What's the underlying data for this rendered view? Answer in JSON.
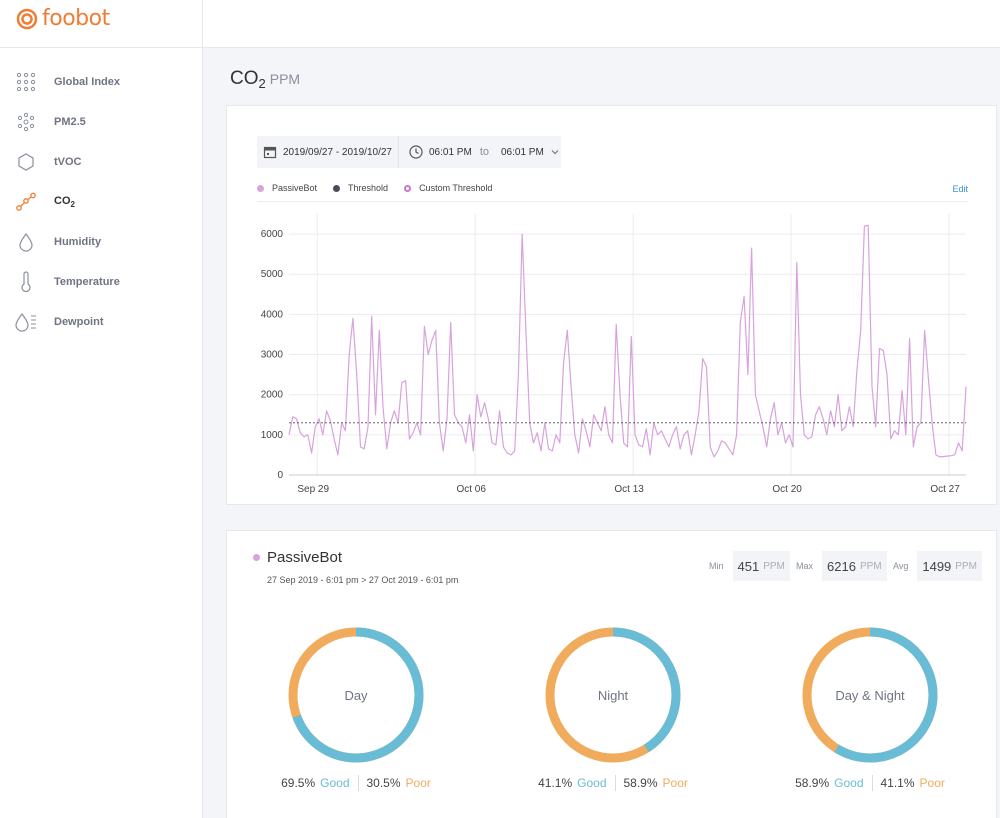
{
  "header": {
    "logo_text": "foobot",
    "brand_color": "#ee7d35"
  },
  "sidebar": {
    "items": [
      {
        "label": "Global Index",
        "icon": "grid-dots-icon"
      },
      {
        "label": "PM2.5",
        "icon": "particles-icon"
      },
      {
        "label": "tVOC",
        "icon": "hexagon-icon"
      },
      {
        "label": "CO",
        "label_sub": "2",
        "icon": "molecule-icon",
        "active": true
      },
      {
        "label": "Humidity",
        "icon": "droplet-icon"
      },
      {
        "label": "Temperature",
        "icon": "thermometer-icon"
      },
      {
        "label": "Dewpoint",
        "icon": "dewpoint-icon"
      }
    ]
  },
  "page": {
    "title_main": "CO",
    "title_sub": "2",
    "title_unit": "PPM"
  },
  "date_picker": {
    "range": "2019/09/27 - 2019/10/27",
    "time_from": "06:01 PM",
    "to_label": "to",
    "time_to": "06:01 PM"
  },
  "legend": {
    "passivebot": "PassiveBot",
    "threshold": "Threshold",
    "custom_threshold": "Custom Threshold",
    "edit": "Edit"
  },
  "colors": {
    "series": "#d8a2dd",
    "threshold": "#4a4c5a",
    "good": "#69bcd6",
    "poor": "#f0ac5c"
  },
  "chart_data": {
    "type": "line",
    "series_name": "PassiveBot",
    "x_start": "2019-09-27",
    "x_end": "2019-10-27",
    "x_ticks": [
      {
        "label": "Sep 29",
        "date": "2019-09-29"
      },
      {
        "label": "Oct 06",
        "date": "2019-10-06"
      },
      {
        "label": "Oct 13",
        "date": "2019-10-13"
      },
      {
        "label": "Oct 20",
        "date": "2019-10-20"
      },
      {
        "label": "Oct 27",
        "date": "2019-10-27"
      }
    ],
    "y_ticks": [
      0,
      1000,
      2000,
      3000,
      4000,
      5000,
      6000
    ],
    "ylim": [
      0,
      6500
    ],
    "threshold": 1300,
    "grid": true,
    "points": [
      [
        "2019-09-27T18:00",
        1000
      ],
      [
        "2019-09-27T22:00",
        1450
      ],
      [
        "2019-09-28T02:00",
        1400
      ],
      [
        "2019-09-28T06:00",
        1050
      ],
      [
        "2019-09-28T10:00",
        950
      ],
      [
        "2019-09-28T14:00",
        1000
      ],
      [
        "2019-09-28T18:00",
        550
      ],
      [
        "2019-09-28T22:00",
        1200
      ],
      [
        "2019-09-29T02:00",
        1400
      ],
      [
        "2019-09-29T06:00",
        1000
      ],
      [
        "2019-09-29T10:00",
        1600
      ],
      [
        "2019-09-29T14:00",
        1350
      ],
      [
        "2019-09-29T18:00",
        900
      ],
      [
        "2019-09-29T22:00",
        500
      ],
      [
        "2019-09-30T02:00",
        1300
      ],
      [
        "2019-09-30T06:00",
        1100
      ],
      [
        "2019-09-30T10:00",
        3000
      ],
      [
        "2019-09-30T14:00",
        3900
      ],
      [
        "2019-09-30T18:00",
        2500
      ],
      [
        "2019-09-30T22:00",
        700
      ],
      [
        "2019-10-01T02:00",
        650
      ],
      [
        "2019-10-01T06:00",
        1200
      ],
      [
        "2019-10-01T10:00",
        3950
      ],
      [
        "2019-10-01T14:00",
        1500
      ],
      [
        "2019-10-01T18:00",
        3600
      ],
      [
        "2019-10-01T22:00",
        1700
      ],
      [
        "2019-10-02T02:00",
        650
      ],
      [
        "2019-10-02T06:00",
        1300
      ],
      [
        "2019-10-02T10:00",
        1600
      ],
      [
        "2019-10-02T14:00",
        1300
      ],
      [
        "2019-10-02T18:00",
        2300
      ],
      [
        "2019-10-02T22:00",
        2350
      ],
      [
        "2019-10-03T02:00",
        900
      ],
      [
        "2019-10-03T06:00",
        1050
      ],
      [
        "2019-10-03T10:00",
        1300
      ],
      [
        "2019-10-03T14:00",
        1000
      ],
      [
        "2019-10-03T18:00",
        3700
      ],
      [
        "2019-10-03T22:00",
        3000
      ],
      [
        "2019-10-04T02:00",
        3350
      ],
      [
        "2019-10-04T06:00",
        3600
      ],
      [
        "2019-10-04T10:00",
        1300
      ],
      [
        "2019-10-04T14:00",
        600
      ],
      [
        "2019-10-04T18:00",
        1400
      ],
      [
        "2019-10-04T22:00",
        3800
      ],
      [
        "2019-10-05T02:00",
        1500
      ],
      [
        "2019-10-05T06:00",
        1300
      ],
      [
        "2019-10-05T10:00",
        1200
      ],
      [
        "2019-10-05T14:00",
        800
      ],
      [
        "2019-10-05T18:00",
        1500
      ],
      [
        "2019-10-05T22:00",
        600
      ],
      [
        "2019-10-06T02:00",
        2000
      ],
      [
        "2019-10-06T06:00",
        1450
      ],
      [
        "2019-10-06T10:00",
        1800
      ],
      [
        "2019-10-06T14:00",
        1400
      ],
      [
        "2019-10-06T18:00",
        800
      ],
      [
        "2019-10-06T22:00",
        750
      ],
      [
        "2019-10-07T02:00",
        1600
      ],
      [
        "2019-10-07T06:00",
        700
      ],
      [
        "2019-10-07T10:00",
        550
      ],
      [
        "2019-10-07T14:00",
        500
      ],
      [
        "2019-10-07T18:00",
        600
      ],
      [
        "2019-10-07T22:00",
        2500
      ],
      [
        "2019-10-08T02:00",
        6000
      ],
      [
        "2019-10-08T06:00",
        3600
      ],
      [
        "2019-10-08T10:00",
        1300
      ],
      [
        "2019-10-08T14:00",
        800
      ],
      [
        "2019-10-08T18:00",
        1050
      ],
      [
        "2019-10-08T22:00",
        600
      ],
      [
        "2019-10-09T02:00",
        1300
      ],
      [
        "2019-10-09T06:00",
        650
      ],
      [
        "2019-10-09T10:00",
        600
      ],
      [
        "2019-10-09T14:00",
        1000
      ],
      [
        "2019-10-09T18:00",
        800
      ],
      [
        "2019-10-09T22:00",
        2800
      ],
      [
        "2019-10-10T02:00",
        3600
      ],
      [
        "2019-10-10T06:00",
        2200
      ],
      [
        "2019-10-10T10:00",
        1000
      ],
      [
        "2019-10-10T14:00",
        550
      ],
      [
        "2019-10-10T18:00",
        1400
      ],
      [
        "2019-10-10T22:00",
        1100
      ],
      [
        "2019-10-11T02:00",
        700
      ],
      [
        "2019-10-11T06:00",
        1500
      ],
      [
        "2019-10-11T10:00",
        1300
      ],
      [
        "2019-10-11T14:00",
        1100
      ],
      [
        "2019-10-11T18:00",
        1700
      ],
      [
        "2019-10-11T22:00",
        1000
      ],
      [
        "2019-10-12T02:00",
        800
      ],
      [
        "2019-10-12T06:00",
        3750
      ],
      [
        "2019-10-12T10:00",
        2000
      ],
      [
        "2019-10-12T14:00",
        800
      ],
      [
        "2019-10-12T18:00",
        700
      ],
      [
        "2019-10-12T22:00",
        3450
      ],
      [
        "2019-10-13T02:00",
        1000
      ],
      [
        "2019-10-13T06:00",
        750
      ],
      [
        "2019-10-13T10:00",
        700
      ],
      [
        "2019-10-13T14:00",
        1150
      ],
      [
        "2019-10-13T18:00",
        500
      ],
      [
        "2019-10-13T22:00",
        1300
      ],
      [
        "2019-10-14T02:00",
        1000
      ],
      [
        "2019-10-14T06:00",
        1100
      ],
      [
        "2019-10-14T10:00",
        900
      ],
      [
        "2019-10-14T14:00",
        700
      ],
      [
        "2019-10-14T18:00",
        1000
      ],
      [
        "2019-10-14T22:00",
        1200
      ],
      [
        "2019-10-15T02:00",
        650
      ],
      [
        "2019-10-15T06:00",
        1000
      ],
      [
        "2019-10-15T10:00",
        1100
      ],
      [
        "2019-10-15T14:00",
        500
      ],
      [
        "2019-10-15T18:00",
        1000
      ],
      [
        "2019-10-15T22:00",
        1600
      ],
      [
        "2019-10-16T02:00",
        2900
      ],
      [
        "2019-10-16T06:00",
        2700
      ],
      [
        "2019-10-16T10:00",
        700
      ],
      [
        "2019-10-16T14:00",
        450
      ],
      [
        "2019-10-16T18:00",
        600
      ],
      [
        "2019-10-16T22:00",
        850
      ],
      [
        "2019-10-17T02:00",
        800
      ],
      [
        "2019-10-17T06:00",
        650
      ],
      [
        "2019-10-17T10:00",
        500
      ],
      [
        "2019-10-17T14:00",
        1000
      ],
      [
        "2019-10-17T18:00",
        3800
      ],
      [
        "2019-10-17T22:00",
        4450
      ],
      [
        "2019-10-18T02:00",
        2500
      ],
      [
        "2019-10-18T06:00",
        5650
      ],
      [
        "2019-10-18T10:00",
        2000
      ],
      [
        "2019-10-18T14:00",
        1600
      ],
      [
        "2019-10-18T18:00",
        1200
      ],
      [
        "2019-10-18T22:00",
        700
      ],
      [
        "2019-10-19T02:00",
        1400
      ],
      [
        "2019-10-19T06:00",
        1800
      ],
      [
        "2019-10-19T10:00",
        1000
      ],
      [
        "2019-10-19T14:00",
        1300
      ],
      [
        "2019-10-19T18:00",
        800
      ],
      [
        "2019-10-19T22:00",
        1000
      ],
      [
        "2019-10-20T02:00",
        700
      ],
      [
        "2019-10-20T06:00",
        5300
      ],
      [
        "2019-10-20T10:00",
        2000
      ],
      [
        "2019-10-20T14:00",
        1000
      ],
      [
        "2019-10-20T18:00",
        900
      ],
      [
        "2019-10-20T22:00",
        950
      ],
      [
        "2019-10-21T02:00",
        1500
      ],
      [
        "2019-10-21T06:00",
        1700
      ],
      [
        "2019-10-21T10:00",
        1400
      ],
      [
        "2019-10-21T14:00",
        1000
      ],
      [
        "2019-10-21T18:00",
        1600
      ],
      [
        "2019-10-21T22:00",
        1200
      ],
      [
        "2019-10-22T02:00",
        2000
      ],
      [
        "2019-10-22T06:00",
        1100
      ],
      [
        "2019-10-22T10:00",
        1200
      ],
      [
        "2019-10-22T14:00",
        1700
      ],
      [
        "2019-10-22T18:00",
        1200
      ],
      [
        "2019-10-22T22:00",
        2600
      ],
      [
        "2019-10-23T02:00",
        3600
      ],
      [
        "2019-10-23T06:00",
        6200
      ],
      [
        "2019-10-23T10:00",
        6216
      ],
      [
        "2019-10-23T14:00",
        2200
      ],
      [
        "2019-10-23T18:00",
        1200
      ],
      [
        "2019-10-23T22:00",
        3150
      ],
      [
        "2019-10-24T02:00",
        3100
      ],
      [
        "2019-10-24T06:00",
        2500
      ],
      [
        "2019-10-24T10:00",
        900
      ],
      [
        "2019-10-24T14:00",
        1100
      ],
      [
        "2019-10-24T18:00",
        1000
      ],
      [
        "2019-10-24T22:00",
        2100
      ],
      [
        "2019-10-25T02:00",
        1000
      ],
      [
        "2019-10-25T06:00",
        3400
      ],
      [
        "2019-10-25T10:00",
        700
      ],
      [
        "2019-10-25T14:00",
        1200
      ],
      [
        "2019-10-25T18:00",
        1300
      ],
      [
        "2019-10-25T22:00",
        3600
      ],
      [
        "2019-10-26T02:00",
        2400
      ],
      [
        "2019-10-26T06:00",
        1300
      ],
      [
        "2019-10-26T10:00",
        500
      ],
      [
        "2019-10-26T14:00",
        451
      ],
      [
        "2019-10-26T18:00",
        460
      ],
      [
        "2019-10-26T22:00",
        470
      ],
      [
        "2019-10-27T02:00",
        480
      ],
      [
        "2019-10-27T06:00",
        500
      ],
      [
        "2019-10-27T10:00",
        800
      ],
      [
        "2019-10-27T14:00",
        600
      ],
      [
        "2019-10-27T18:00",
        2200
      ]
    ]
  },
  "stats": {
    "name": "PassiveBot",
    "range": "27 Sep 2019 - 6:01 pm > 27 Oct 2019 - 6:01 pm",
    "min_label": "Min",
    "min_value": "451",
    "max_label": "Max",
    "max_value": "6216",
    "avg_label": "Avg",
    "avg_value": "1499",
    "unit": "PPM",
    "donuts": [
      {
        "label": "Day",
        "good": 69.5,
        "poor": 30.5,
        "good_text": "69.5%",
        "poor_text": "30.5%"
      },
      {
        "label": "Night",
        "good": 41.1,
        "poor": 58.9,
        "good_text": "41.1%",
        "poor_text": "58.9%"
      },
      {
        "label": "Day & Night",
        "good": 58.9,
        "poor": 41.1,
        "good_text": "58.9%",
        "poor_text": "41.1%"
      }
    ],
    "good_label": "Good",
    "poor_label": "Poor"
  }
}
